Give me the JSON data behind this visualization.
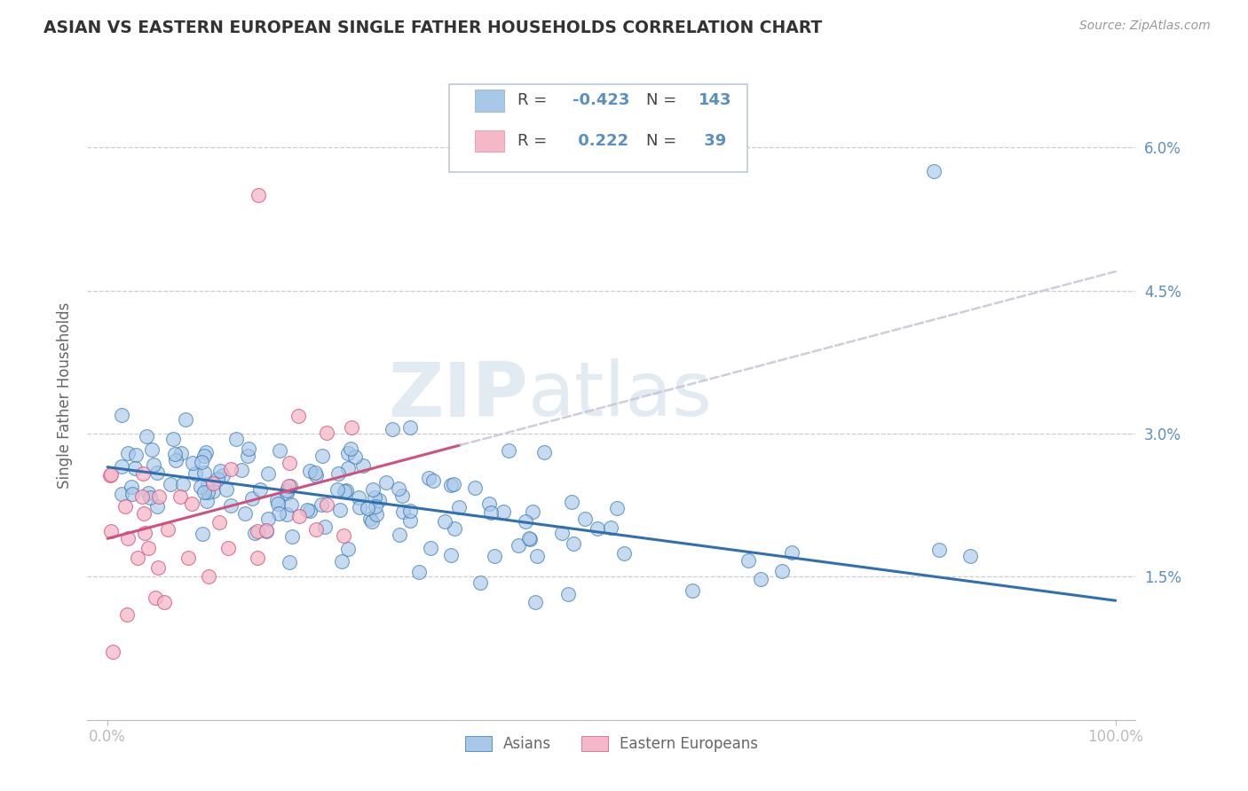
{
  "title": "ASIAN VS EASTERN EUROPEAN SINGLE FATHER HOUSEHOLDS CORRELATION CHART",
  "source": "Source: ZipAtlas.com",
  "ylabel": "Single Father Households",
  "asian_color": "#a8c8e8",
  "eastern_color": "#f5b8c8",
  "asian_line_color": "#3070b0",
  "eastern_line_color": "#d05080",
  "legend_R_asian": "-0.423",
  "legend_N_asian": "143",
  "legend_R_eastern": "0.222",
  "legend_N_eastern": "39",
  "asian_label": "Asians",
  "eastern_label": "Eastern Europeans",
  "watermark_zip": "ZIP",
  "watermark_atlas": "atlas",
  "background_color": "#ffffff",
  "asian_slope": -0.014,
  "asian_intercept": 2.65,
  "eastern_slope": 0.028,
  "eastern_intercept": 1.9,
  "tick_color": "#5a8fc0",
  "grid_color": "#cccccc",
  "label_color": "#666666",
  "title_color": "#333333"
}
